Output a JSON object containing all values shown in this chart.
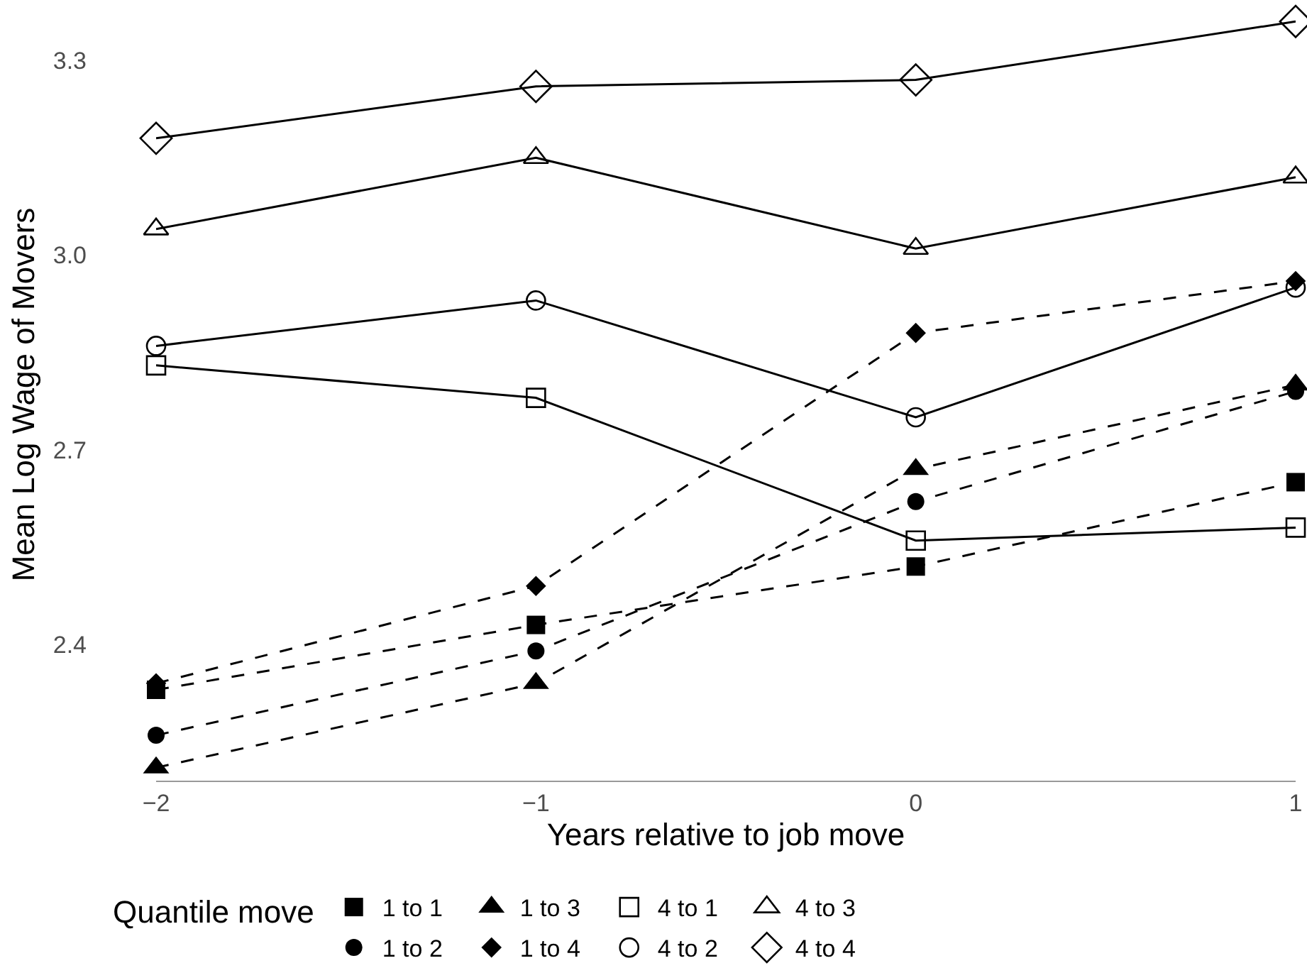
{
  "chart_data": {
    "type": "line",
    "xlabel": "Years relative to job move",
    "ylabel": "Mean Log Wage of Movers",
    "legend_title": "Quantile move",
    "legend": "bottom",
    "grid": false,
    "x": [
      -2,
      -1,
      0,
      1
    ],
    "xlim": [
      -2,
      1
    ],
    "xticks": [
      {
        "value": -2,
        "label": "−2"
      },
      {
        "value": -1,
        "label": "−1"
      },
      0,
      1
    ],
    "ylim": [
      2.19,
      3.38
    ],
    "yticks": [
      2.4,
      2.7,
      {
        "value": 3,
        "label": "3.0"
      },
      3.3
    ],
    "series": [
      {
        "name": "1 to 1",
        "color": "#000000",
        "marker": "square",
        "line_style": "dashed",
        "values": [
          2.33,
          2.43,
          2.52,
          2.65
        ]
      },
      {
        "name": "1 to 3",
        "color": "#000000",
        "marker": "triangle",
        "line_style": "dashed",
        "values": [
          2.21,
          2.34,
          2.67,
          2.8
        ]
      },
      {
        "name": "4 to 1",
        "color": "#000000",
        "marker": "square-open",
        "line_style": "solid",
        "values": [
          2.83,
          2.78,
          2.56,
          2.58
        ]
      },
      {
        "name": "4 to 3",
        "color": "#000000",
        "marker": "triangle-open",
        "line_style": "solid",
        "values": [
          3.04,
          3.15,
          3.01,
          3.12
        ]
      },
      {
        "name": "1 to 2",
        "color": "#000000",
        "marker": "circle",
        "line_style": "dashed",
        "values": [
          2.26,
          2.39,
          2.62,
          2.79
        ]
      },
      {
        "name": "1 to 4",
        "color": "#000000",
        "marker": "diamond",
        "line_style": "dashed",
        "values": [
          2.34,
          2.49,
          2.88,
          2.96
        ]
      },
      {
        "name": "4 to 2",
        "color": "#000000",
        "marker": "circle-open",
        "line_style": "solid",
        "values": [
          2.86,
          2.93,
          2.75,
          2.95
        ]
      },
      {
        "name": "4 to 4",
        "color": "#000000",
        "marker": "diamond-open",
        "line_style": "solid",
        "values": [
          3.18,
          3.26,
          3.27,
          3.36
        ]
      }
    ]
  }
}
